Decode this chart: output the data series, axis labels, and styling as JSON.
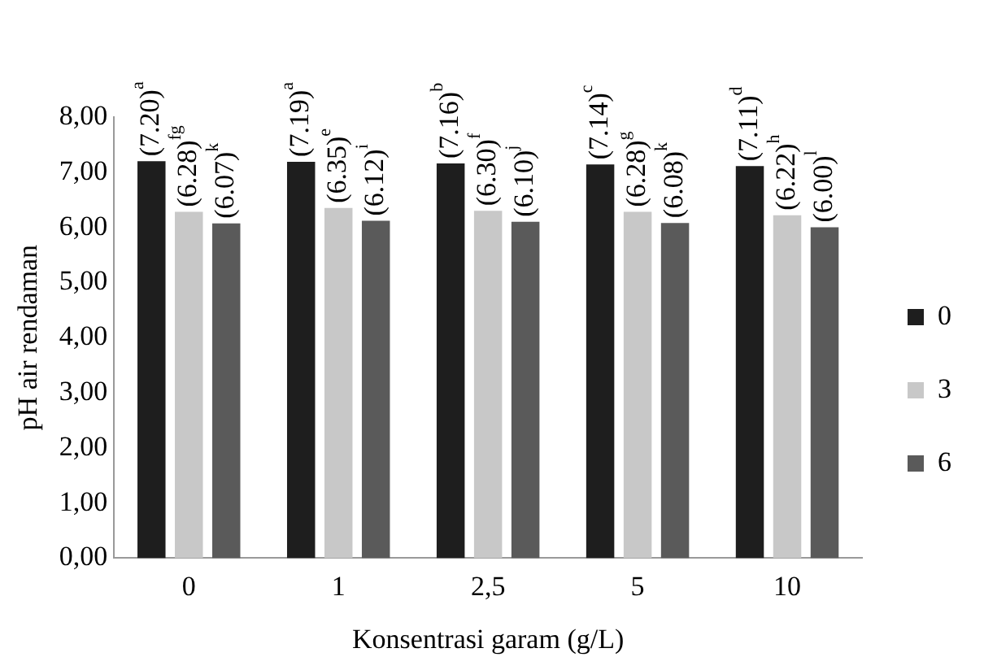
{
  "chart_data": {
    "type": "bar",
    "xlabel": "Konsentrasi garam (g/L)",
    "ylabel": "pH air rendaman",
    "categories": [
      "0",
      "1",
      "2,5",
      "5",
      "10"
    ],
    "series": [
      {
        "name": "0",
        "color": "#1e1e1e",
        "values": [
          7.2,
          7.19,
          7.16,
          7.14,
          7.11
        ],
        "value_labels": [
          "(7.20)$^{a}$",
          "(7.19)$^{a}$",
          "(7.16)$^{b}$",
          "(7.14)$^{c}$",
          "(7.11)$^{d}$"
        ]
      },
      {
        "name": "3",
        "color": "#c8c8c8",
        "values": [
          6.28,
          6.35,
          6.3,
          6.28,
          6.22
        ],
        "value_labels": [
          "(6.28)$^{fg}$",
          "(6.35)$^{e}$",
          "(6.30)$^{f}$",
          "(6.28)$^{g}$",
          "(6.22)$^{h}$"
        ]
      },
      {
        "name": "6",
        "color": "#5a5a5a",
        "values": [
          6.07,
          6.12,
          6.1,
          6.08,
          6.0
        ],
        "value_labels": [
          "(6.07)$^{k}$",
          "(6.12)$^{i}$",
          "(6.10)$^{j}$",
          "(6.08)$^{k}$",
          "(6.00)$^{l}$"
        ]
      }
    ],
    "ylim": [
      0,
      8
    ],
    "yticks": [
      {
        "value": 0,
        "label": "0,00"
      },
      {
        "value": 1,
        "label": "1,00"
      },
      {
        "value": 2,
        "label": "2,00"
      },
      {
        "value": 3,
        "label": "3,00"
      },
      {
        "value": 4,
        "label": "4,00"
      },
      {
        "value": 5,
        "label": "5,00"
      },
      {
        "value": 6,
        "label": "6,00"
      },
      {
        "value": 7,
        "label": "7,00"
      },
      {
        "value": 8,
        "label": "8,00"
      }
    ],
    "grid": false,
    "legend": "right"
  }
}
